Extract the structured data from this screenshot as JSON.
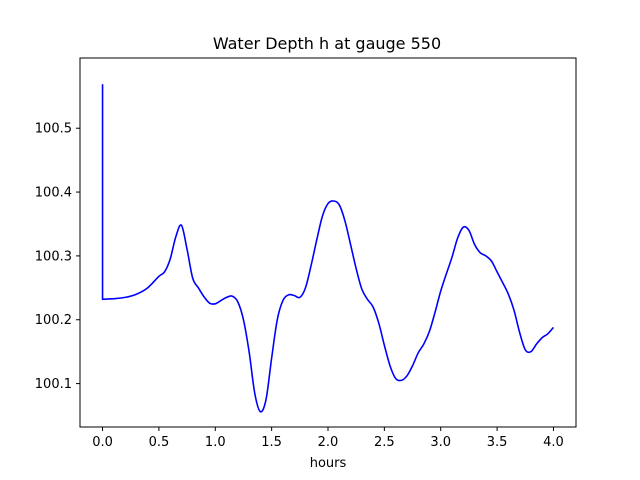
{
  "chart_data": {
    "type": "line",
    "title": "Water Depth h at gauge 550",
    "xlabel": "hours",
    "ylabel": "",
    "xlim": [
      -0.2,
      4.2
    ],
    "ylim": [
      100.032,
      100.61
    ],
    "grid": false,
    "xticks": [
      0.0,
      0.5,
      1.0,
      1.5,
      2.0,
      2.5,
      3.0,
      3.5,
      4.0
    ],
    "xtick_labels": [
      "0.0",
      "0.5",
      "1.0",
      "1.5",
      "2.0",
      "2.5",
      "3.0",
      "3.5",
      "4.0"
    ],
    "yticks": [
      100.1,
      100.2,
      100.3,
      100.4,
      100.5
    ],
    "ytick_labels": [
      "100.1",
      "100.2",
      "100.3",
      "100.4",
      "100.5"
    ],
    "series": [
      {
        "color": "#0000ff",
        "x": [
          0.0,
          0.0,
          0.0,
          0.1,
          0.2,
          0.3,
          0.4,
          0.5,
          0.55,
          0.6,
          0.65,
          0.7,
          0.75,
          0.8,
          0.85,
          0.9,
          0.95,
          1.0,
          1.05,
          1.1,
          1.15,
          1.2,
          1.25,
          1.3,
          1.35,
          1.4,
          1.45,
          1.5,
          1.55,
          1.6,
          1.65,
          1.7,
          1.75,
          1.8,
          1.85,
          1.9,
          1.95,
          2.0,
          2.05,
          2.1,
          2.15,
          2.2,
          2.25,
          2.3,
          2.35,
          2.4,
          2.45,
          2.5,
          2.55,
          2.6,
          2.65,
          2.7,
          2.75,
          2.8,
          2.85,
          2.9,
          2.95,
          3.0,
          3.05,
          3.1,
          3.15,
          3.2,
          3.25,
          3.3,
          3.35,
          3.4,
          3.45,
          3.5,
          3.55,
          3.6,
          3.65,
          3.7,
          3.75,
          3.8,
          3.85,
          3.9,
          3.95,
          4.0
        ],
        "y": [
          100.232,
          100.568,
          100.232,
          100.233,
          100.235,
          100.24,
          100.25,
          100.268,
          100.275,
          100.295,
          100.33,
          100.348,
          100.31,
          100.265,
          100.25,
          100.236,
          100.226,
          100.225,
          100.23,
          100.235,
          100.237,
          100.228,
          100.2,
          100.15,
          100.085,
          100.056,
          100.075,
          100.14,
          100.2,
          100.23,
          100.239,
          100.238,
          100.235,
          100.25,
          100.285,
          100.325,
          100.362,
          100.382,
          100.386,
          100.38,
          100.355,
          100.318,
          100.28,
          100.248,
          100.232,
          100.22,
          100.195,
          100.16,
          100.128,
          100.108,
          100.105,
          100.112,
          100.128,
          100.148,
          100.162,
          100.182,
          100.212,
          100.245,
          100.272,
          100.298,
          100.328,
          100.345,
          100.34,
          100.318,
          100.305,
          100.3,
          100.292,
          100.275,
          100.258,
          100.24,
          100.215,
          100.18,
          100.153,
          100.15,
          100.162,
          100.172,
          100.178,
          100.188
        ]
      }
    ]
  }
}
